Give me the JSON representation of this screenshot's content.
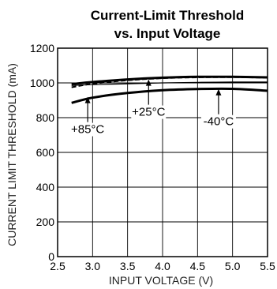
{
  "chart_data": {
    "type": "line",
    "title": "Current-Limit Threshold",
    "subtitle": "vs. Input Voltage",
    "xlabel": "INPUT VOLTAGE (V)",
    "ylabel": "CURRENT LIMIT THRESHOLD (mA)",
    "xlim": [
      2.5,
      5.5
    ],
    "ylim": [
      0,
      1200
    ],
    "x_ticks": [
      "2.5",
      "3.0",
      "3.5",
      "4.0",
      "4.5",
      "5.0",
      "5.5"
    ],
    "y_ticks": [
      "0",
      "200",
      "400",
      "600",
      "800",
      "1000",
      "1200"
    ],
    "grid": true,
    "series": [
      {
        "name": "+85°C",
        "style": "dashed",
        "x": [
          2.7,
          3.0,
          3.5,
          4.0,
          4.5,
          5.0,
          5.5
        ],
        "y": [
          975,
          995,
          1015,
          1027,
          1032,
          1033,
          1030
        ]
      },
      {
        "name": "+25°C",
        "style": "solid-thick",
        "x": [
          2.7,
          3.0,
          3.5,
          4.0,
          4.5,
          5.0,
          5.5
        ],
        "y": [
          993,
          1005,
          1020,
          1030,
          1035,
          1035,
          1032
        ]
      },
      {
        "name": "-40°C",
        "style": "solid-thick",
        "x": [
          2.7,
          3.0,
          3.5,
          4.0,
          4.5,
          5.0,
          5.5
        ],
        "y": [
          885,
          915,
          942,
          958,
          965,
          966,
          955
        ]
      },
      {
        "name": "",
        "style": "solid-thin",
        "x": [
          2.7,
          3.0,
          3.5,
          4.0,
          4.5,
          5.0,
          5.5
        ],
        "y": [
          985,
          990,
          995,
          1000,
          1003,
          1005,
          1005
        ]
      }
    ],
    "annotations": [
      {
        "text": "+85°C",
        "x": 2.93,
        "y": 920
      },
      {
        "text": "+25°C",
        "x": 3.8,
        "y": 1020
      },
      {
        "text": "-40°C",
        "x": 4.8,
        "y": 965
      }
    ]
  }
}
